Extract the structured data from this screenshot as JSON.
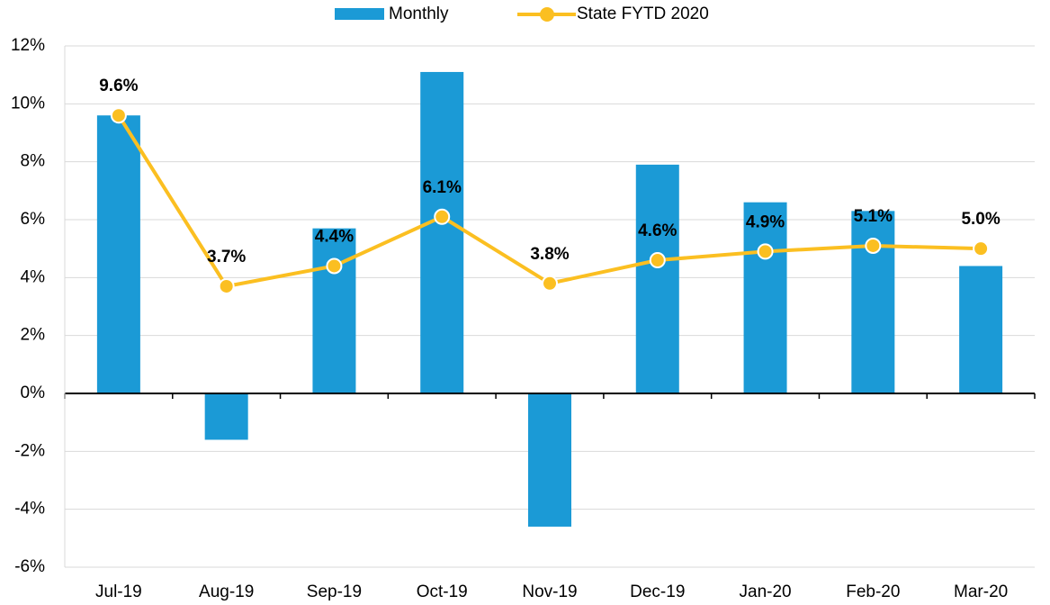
{
  "chart_data": {
    "type": "bar-line",
    "categories": [
      "Jul-19",
      "Aug-19",
      "Sep-19",
      "Oct-19",
      "Nov-19",
      "Dec-19",
      "Jan-20",
      "Feb-20",
      "Mar-20"
    ],
    "series": [
      {
        "name": "Monthly",
        "type": "bar",
        "color": "#1b9ad6",
        "values": [
          9.6,
          -1.6,
          5.7,
          11.1,
          -4.6,
          7.9,
          6.6,
          6.3,
          4.4
        ]
      },
      {
        "name": "State FYTD 2020",
        "type": "line",
        "color": "#fbbf21",
        "values": [
          9.6,
          3.7,
          4.4,
          6.1,
          3.8,
          4.6,
          4.9,
          5.1,
          5.0
        ],
        "value_labels": [
          "9.6%",
          "3.7%",
          "4.4%",
          "6.1%",
          "3.8%",
          "4.6%",
          "4.9%",
          "5.1%",
          "5.0%"
        ]
      }
    ],
    "ylim": [
      -6,
      12
    ],
    "yticks": [
      {
        "value": -6,
        "label": "-6%"
      },
      {
        "value": -4,
        "label": "-4%"
      },
      {
        "value": -2,
        "label": "-2%"
      },
      {
        "value": 0,
        "label": "0%"
      },
      {
        "value": 2,
        "label": "2%"
      },
      {
        "value": 4,
        "label": "4%"
      },
      {
        "value": 6,
        "label": "6%"
      },
      {
        "value": 8,
        "label": "8%"
      },
      {
        "value": 10,
        "label": "10%"
      },
      {
        "value": 12,
        "label": "12%"
      }
    ],
    "grid": true,
    "legend": "top"
  }
}
